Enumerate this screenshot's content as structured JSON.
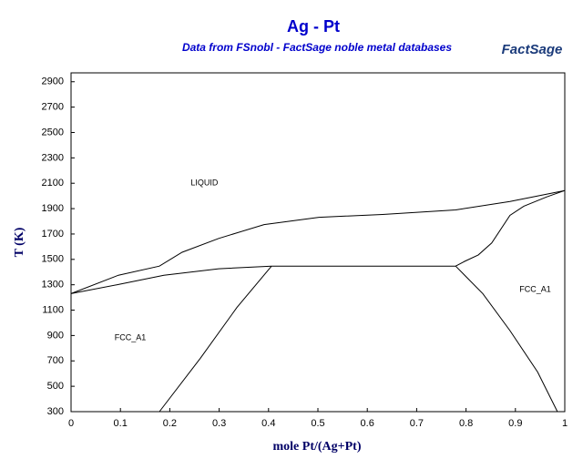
{
  "chart_data": {
    "type": "line",
    "title": "Ag - Pt",
    "subtitle": "Data from FSnobl - FactSage noble metal databases",
    "logo": "FactSage",
    "x_label": "mole Pt/(Ag+Pt)",
    "y_label": "T (K)",
    "xlim": [
      0,
      1
    ],
    "ylim": [
      300,
      2970
    ],
    "xticks": [
      0,
      0.1,
      0.2,
      0.3,
      0.4,
      0.5,
      0.6,
      0.7,
      0.8,
      0.9,
      1
    ],
    "yticks": [
      300,
      500,
      700,
      900,
      1100,
      1300,
      1500,
      1700,
      1900,
      2100,
      2300,
      2500,
      2700,
      2900
    ],
    "annotations": [
      "LIQUID",
      "FCC_A1",
      "FCC_A1"
    ],
    "series": [
      {
        "color": "#000000",
        "x": [
          0,
          0.096,
          0.179,
          0.225,
          0.299,
          0.391,
          0.502,
          0.631,
          0.779,
          0.889,
          1
        ],
        "values": [
          1230,
          1375,
          1447,
          1556,
          1665,
          1774,
          1832,
          1854,
          1890,
          1956,
          2043
        ]
      },
      {
        "color": "#000000",
        "x": [
          0,
          0.096,
          0.188,
          0.299,
          0.406
        ],
        "values": [
          1230,
          1302,
          1375,
          1426,
          1447
        ]
      },
      {
        "color": "#000000",
        "x": [
          0.406,
          0.779
        ],
        "values": [
          1447,
          1447
        ]
      },
      {
        "color": "#000000",
        "x": [
          0.779,
          0.797,
          0.825,
          0.852,
          0.889,
          0.917,
          0.963,
          1
        ],
        "values": [
          1447,
          1484,
          1535,
          1629,
          1847,
          1919,
          1992,
          2043
        ]
      },
      {
        "color": "#000000",
        "x": [
          0.179,
          0.262,
          0.336,
          0.406
        ],
        "values": [
          300,
          721,
          1121,
          1447
        ]
      },
      {
        "color": "#000000",
        "x": [
          0.779,
          0.834,
          0.889,
          0.945,
          0.985
        ],
        "values": [
          1447,
          1230,
          939,
          612,
          300
        ]
      }
    ]
  }
}
